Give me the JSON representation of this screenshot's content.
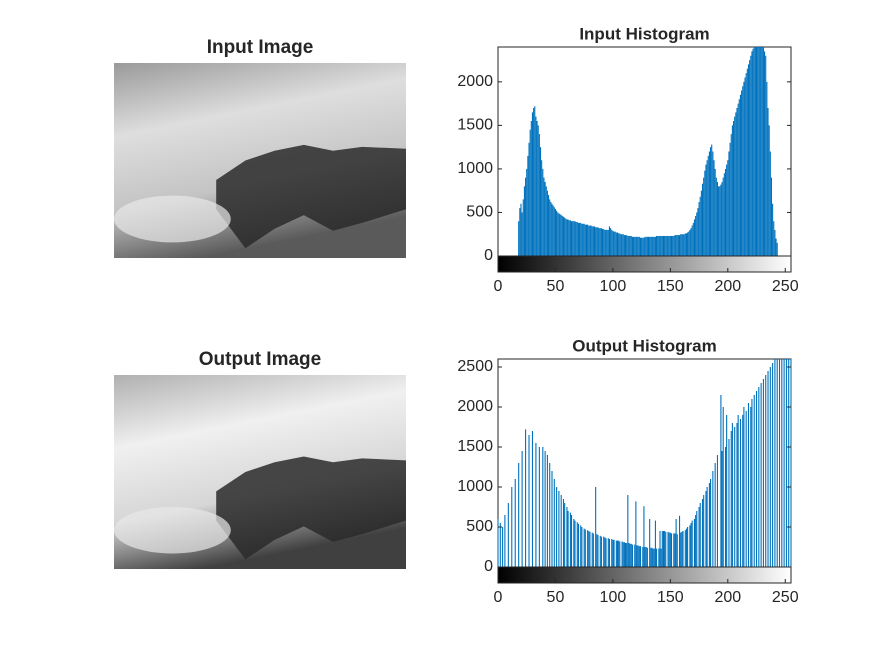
{
  "chart_data": [
    {
      "type": "image",
      "title": "Input Image"
    },
    {
      "type": "bar",
      "title": "Input Histogram",
      "color": "#0072bd",
      "x": [
        0,
        1,
        2,
        3,
        4,
        5,
        6,
        7,
        8,
        9,
        10,
        11,
        12,
        13,
        14,
        15,
        16,
        17,
        18,
        19,
        20,
        21,
        22,
        23,
        24,
        25,
        26,
        27,
        28,
        29,
        30,
        31,
        32,
        33,
        34,
        35,
        36,
        37,
        38,
        39,
        40,
        41,
        42,
        43,
        44,
        45,
        46,
        47,
        48,
        49,
        50,
        51,
        52,
        53,
        54,
        55,
        56,
        57,
        58,
        59,
        60,
        61,
        62,
        63,
        64,
        65,
        66,
        67,
        68,
        69,
        70,
        71,
        72,
        73,
        74,
        75,
        76,
        77,
        78,
        79,
        80,
        81,
        82,
        83,
        84,
        85,
        86,
        87,
        88,
        89,
        90,
        91,
        92,
        93,
        94,
        95,
        96,
        97,
        98,
        99,
        100,
        101,
        102,
        103,
        104,
        105,
        106,
        107,
        108,
        109,
        110,
        111,
        112,
        113,
        114,
        115,
        116,
        117,
        118,
        119,
        120,
        121,
        122,
        123,
        124,
        125,
        126,
        127,
        128,
        129,
        130,
        131,
        132,
        133,
        134,
        135,
        136,
        137,
        138,
        139,
        140,
        141,
        142,
        143,
        144,
        145,
        146,
        147,
        148,
        149,
        150,
        151,
        152,
        153,
        154,
        155,
        156,
        157,
        158,
        159,
        160,
        161,
        162,
        163,
        164,
        165,
        166,
        167,
        168,
        169,
        170,
        171,
        172,
        173,
        174,
        175,
        176,
        177,
        178,
        179,
        180,
        181,
        182,
        183,
        184,
        185,
        186,
        187,
        188,
        189,
        190,
        191,
        192,
        193,
        194,
        195,
        196,
        197,
        198,
        199,
        200,
        201,
        202,
        203,
        204,
        205,
        206,
        207,
        208,
        209,
        210,
        211,
        212,
        213,
        214,
        215,
        216,
        217,
        218,
        219,
        220,
        221,
        222,
        223,
        224,
        225,
        226,
        227,
        228,
        229,
        230,
        231,
        232,
        233,
        234,
        235,
        236,
        237,
        238,
        239,
        240,
        241,
        242,
        243,
        244,
        245,
        246,
        247,
        248,
        249,
        250,
        251,
        252,
        253,
        254,
        255
      ],
      "values": [
        0,
        0,
        0,
        0,
        0,
        0,
        0,
        0,
        0,
        0,
        0,
        0,
        0,
        0,
        0,
        0,
        0,
        0,
        400,
        550,
        600,
        500,
        650,
        800,
        900,
        1000,
        1150,
        1300,
        1450,
        1550,
        1650,
        1700,
        1720,
        1600,
        1550,
        1500,
        1400,
        1250,
        1100,
        1000,
        900,
        850,
        800,
        750,
        700,
        650,
        620,
        600,
        580,
        560,
        540,
        520,
        500,
        490,
        480,
        470,
        460,
        450,
        440,
        430,
        420,
        420,
        410,
        410,
        400,
        400,
        400,
        400,
        390,
        390,
        380,
        380,
        380,
        370,
        370,
        370,
        360,
        360,
        360,
        350,
        350,
        350,
        340,
        340,
        340,
        330,
        330,
        330,
        320,
        320,
        320,
        310,
        310,
        300,
        300,
        300,
        300,
        340,
        320,
        300,
        290,
        280,
        280,
        270,
        270,
        260,
        260,
        250,
        250,
        250,
        240,
        240,
        240,
        230,
        230,
        230,
        230,
        220,
        220,
        220,
        220,
        220,
        220,
        220,
        210,
        210,
        210,
        210,
        220,
        220,
        220,
        220,
        220,
        220,
        220,
        220,
        220,
        220,
        230,
        230,
        230,
        230,
        230,
        230,
        230,
        230,
        230,
        230,
        230,
        230,
        230,
        230,
        230,
        230,
        240,
        240,
        240,
        240,
        240,
        250,
        250,
        250,
        250,
        260,
        260,
        270,
        280,
        300,
        320,
        350,
        380,
        420,
        460,
        500,
        550,
        620,
        680,
        750,
        830,
        900,
        980,
        1050,
        1100,
        1150,
        1200,
        1250,
        1280,
        1200,
        1100,
        1000,
        900,
        850,
        800,
        800,
        820,
        850,
        900,
        950,
        1000,
        1050,
        1100,
        1200,
        1300,
        1400,
        1500,
        1550,
        1600,
        1650,
        1700,
        1750,
        1800,
        1850,
        1900,
        1950,
        2000,
        2050,
        2100,
        2150,
        2200,
        2250,
        2300,
        2350,
        2380,
        2400,
        2400,
        2400,
        2400,
        2400,
        2400,
        2400,
        2400,
        2400,
        2350,
        2300,
        2000,
        1700,
        1500,
        1200,
        900,
        600,
        400,
        300,
        200,
        150,
        0,
        0,
        0,
        0,
        0,
        0,
        0,
        0,
        0,
        0,
        0,
        0
      ],
      "xlim": [
        0,
        255
      ],
      "xticks": [
        0,
        50,
        100,
        150,
        200,
        250
      ],
      "ylim": [
        0,
        2400
      ],
      "yticks": [
        0,
        500,
        1000,
        1500,
        2000
      ]
    },
    {
      "type": "image",
      "title": "Output Image"
    },
    {
      "type": "bar",
      "title": "Output Histogram",
      "color": "#0072bd",
      "x": [
        0,
        1,
        2,
        3,
        4,
        5,
        6,
        7,
        8,
        9,
        10,
        11,
        12,
        13,
        14,
        15,
        16,
        17,
        18,
        19,
        20,
        21,
        22,
        23,
        24,
        25,
        26,
        27,
        28,
        29,
        30,
        31,
        32,
        33,
        34,
        35,
        36,
        37,
        38,
        39,
        40,
        41,
        42,
        43,
        44,
        45,
        46,
        47,
        48,
        49,
        50,
        51,
        52,
        53,
        54,
        55,
        56,
        57,
        58,
        59,
        60,
        61,
        62,
        63,
        64,
        65,
        66,
        67,
        68,
        69,
        70,
        71,
        72,
        73,
        74,
        75,
        76,
        77,
        78,
        79,
        80,
        81,
        82,
        83,
        84,
        85,
        86,
        87,
        88,
        89,
        90,
        91,
        92,
        93,
        94,
        95,
        96,
        97,
        98,
        99,
        100,
        101,
        102,
        103,
        104,
        105,
        106,
        107,
        108,
        109,
        110,
        111,
        112,
        113,
        114,
        115,
        116,
        117,
        118,
        119,
        120,
        121,
        122,
        123,
        124,
        125,
        126,
        127,
        128,
        129,
        130,
        131,
        132,
        133,
        134,
        135,
        136,
        137,
        138,
        139,
        140,
        141,
        142,
        143,
        144,
        145,
        146,
        147,
        148,
        149,
        150,
        151,
        152,
        153,
        154,
        155,
        156,
        157,
        158,
        159,
        160,
        161,
        162,
        163,
        164,
        165,
        166,
        167,
        168,
        169,
        170,
        171,
        172,
        173,
        174,
        175,
        176,
        177,
        178,
        179,
        180,
        181,
        182,
        183,
        184,
        185,
        186,
        187,
        188,
        189,
        190,
        191,
        192,
        193,
        194,
        195,
        196,
        197,
        198,
        199,
        200,
        201,
        202,
        203,
        204,
        205,
        206,
        207,
        208,
        209,
        210,
        211,
        212,
        213,
        214,
        215,
        216,
        217,
        218,
        219,
        220,
        221,
        222,
        223,
        224,
        225,
        226,
        227,
        228,
        229,
        230,
        231,
        232,
        233,
        234,
        235,
        236,
        237,
        238,
        239,
        240,
        241,
        242,
        243,
        244,
        245,
        246,
        247,
        248,
        249,
        250,
        251,
        252,
        253,
        254,
        255
      ],
      "values": [
        600,
        0,
        550,
        0,
        500,
        0,
        650,
        0,
        0,
        800,
        0,
        0,
        1000,
        0,
        0,
        1100,
        0,
        0,
        1300,
        0,
        0,
        1450,
        0,
        0,
        1720,
        0,
        0,
        1650,
        0,
        0,
        1700,
        0,
        0,
        1550,
        0,
        0,
        1500,
        0,
        0,
        1500,
        0,
        1450,
        0,
        1400,
        0,
        1300,
        0,
        1200,
        0,
        1100,
        0,
        1000,
        0,
        950,
        0,
        900,
        0,
        850,
        800,
        0,
        750,
        700,
        0,
        680,
        650,
        0,
        600,
        580,
        0,
        560,
        540,
        0,
        520,
        500,
        0,
        480,
        470,
        0,
        460,
        450,
        440,
        0,
        430,
        420,
        0,
        1000,
        410,
        400,
        0,
        390,
        380,
        0,
        380,
        370,
        360,
        0,
        360,
        350,
        0,
        350,
        340,
        340,
        0,
        330,
        330,
        330,
        320,
        0,
        320,
        310,
        310,
        300,
        300,
        900,
        300,
        290,
        290,
        280,
        0,
        280,
        820,
        270,
        270,
        260,
        260,
        0,
        250,
        760,
        250,
        250,
        240,
        0,
        600,
        240,
        240,
        230,
        230,
        580,
        230,
        0,
        230,
        450,
        230,
        450,
        450,
        450,
        440,
        0,
        440,
        430,
        430,
        420,
        0,
        420,
        420,
        600,
        410,
        0,
        640,
        430,
        440,
        450,
        0,
        460,
        480,
        500,
        0,
        520,
        550,
        580,
        0,
        600,
        650,
        700,
        0,
        750,
        800,
        0,
        850,
        900,
        0,
        950,
        1000,
        0,
        1050,
        1100,
        0,
        1200,
        0,
        1300,
        0,
        1400,
        0,
        0,
        2150,
        1450,
        2000,
        0,
        1500,
        1900,
        0,
        1600,
        0,
        1700,
        1800,
        0,
        1750,
        0,
        1800,
        1900,
        0,
        1850,
        0,
        1900,
        2000,
        0,
        1950,
        0,
        2050,
        0,
        2000,
        2100,
        0,
        2150,
        0,
        2200,
        0,
        2250,
        0,
        2300,
        0,
        2350,
        0,
        2400,
        0,
        2450,
        0,
        2500,
        0,
        2550,
        0,
        2600,
        0,
        2600,
        0,
        2600,
        0,
        2600,
        0,
        2600,
        0,
        2600,
        0,
        2600,
        0,
        2600
      ],
      "xlim": [
        0,
        255
      ],
      "xticks": [
        0,
        50,
        100,
        150,
        200,
        250
      ],
      "ylim": [
        0,
        2600
      ],
      "yticks": [
        0,
        500,
        1000,
        1500,
        2000,
        2500
      ]
    }
  ]
}
